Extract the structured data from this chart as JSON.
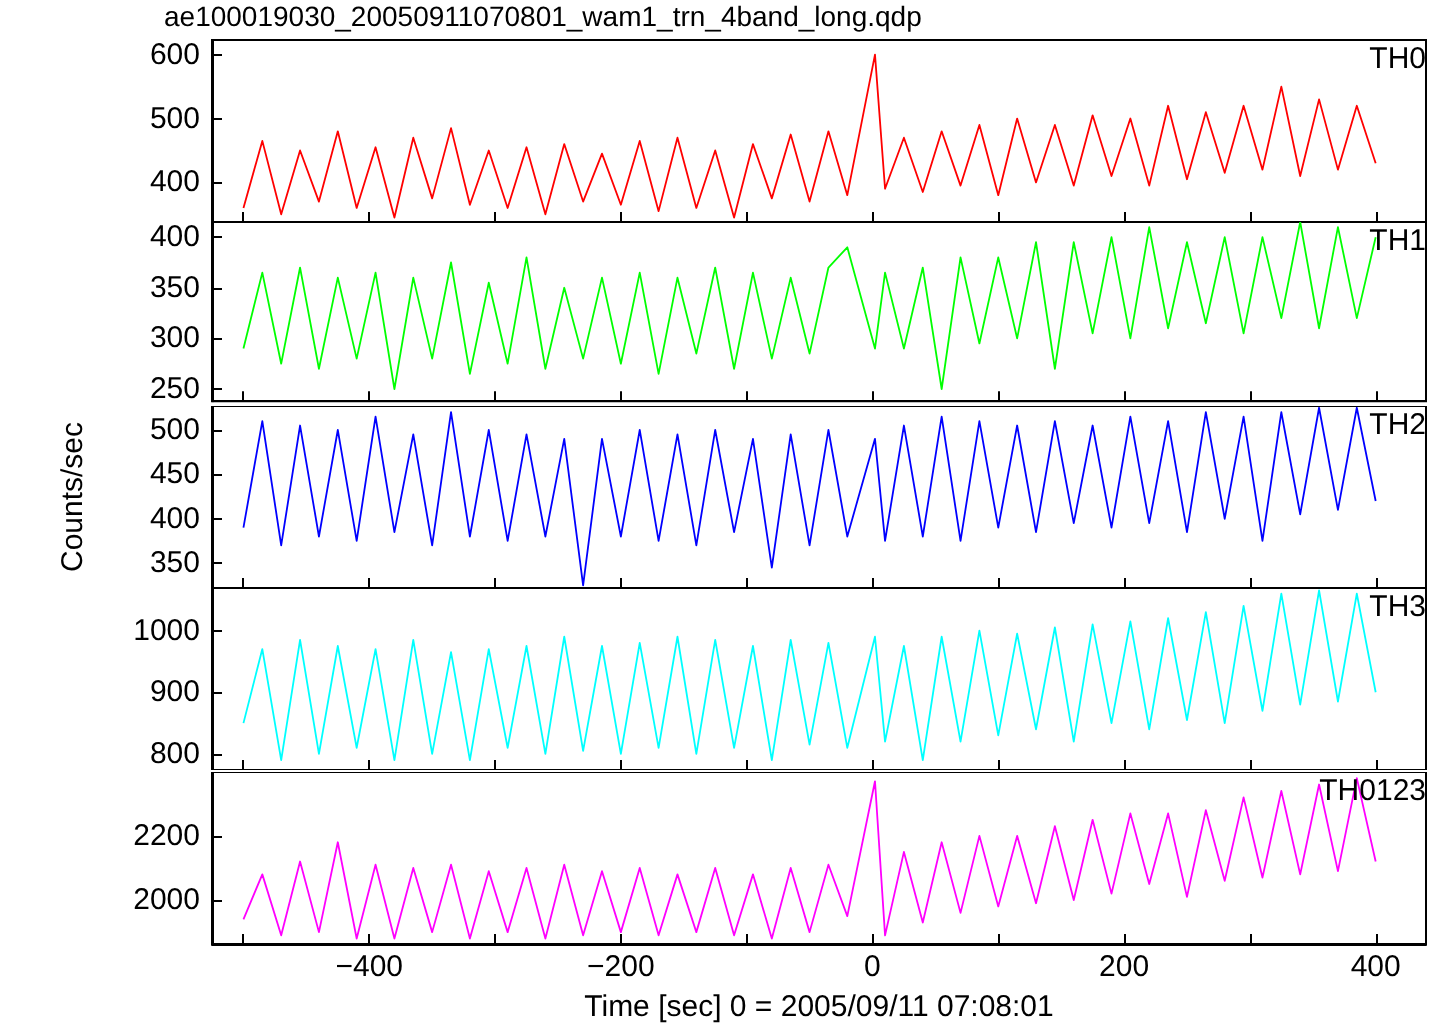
{
  "chart_data": [
    {
      "type": "line",
      "title": "ae100019030_20050911070801_wam1_trn_4band_long.qdp",
      "xlim": [
        -525,
        440
      ],
      "xticks": [
        {
          "value": -500,
          "label": null
        },
        -400,
        {
          "value": -300,
          "label": null
        },
        -200,
        {
          "value": -100,
          "label": null
        },
        0,
        {
          "value": 100,
          "label": null
        },
        200,
        {
          "value": 300,
          "label": null
        },
        400
      ],
      "ylim": [
        338,
        623
      ],
      "yticks": [
        400,
        500,
        600
      ],
      "tick_labels": "y",
      "legend": "top right",
      "x": [
        -500,
        -485,
        -470,
        -455,
        -440,
        -425,
        -410,
        -395,
        -380,
        -365,
        -350,
        -335,
        -320,
        -305,
        -290,
        -275,
        -260,
        -245,
        -230,
        -215,
        -200,
        -185,
        -170,
        -155,
        -140,
        -125,
        -110,
        -95,
        -80,
        -65,
        -50,
        -35,
        -20,
        2,
        10,
        25,
        40,
        55,
        70,
        85,
        100,
        115,
        130,
        145,
        160,
        175,
        190,
        205,
        220,
        235,
        250,
        265,
        280,
        295,
        310,
        325,
        340,
        355,
        370,
        385,
        400
      ],
      "series": [
        {
          "name": "TH0",
          "color": "#ff0000",
          "values": [
            360,
            465,
            350,
            450,
            370,
            480,
            360,
            455,
            345,
            470,
            375,
            485,
            365,
            450,
            360,
            455,
            350,
            460,
            370,
            445,
            365,
            465,
            355,
            470,
            360,
            450,
            345,
            460,
            375,
            475,
            370,
            480,
            380,
            600,
            390,
            470,
            385,
            480,
            395,
            490,
            380,
            500,
            400,
            490,
            395,
            505,
            410,
            500,
            395,
            520,
            405,
            510,
            415,
            520,
            420,
            550,
            410,
            530,
            420,
            520,
            430
          ]
        }
      ]
    },
    {
      "type": "line",
      "xlim": [
        -525,
        440
      ],
      "xticks": [
        {
          "value": -500,
          "label": null
        },
        -400,
        {
          "value": -300,
          "label": null
        },
        -200,
        {
          "value": -100,
          "label": null
        },
        0,
        {
          "value": 100,
          "label": null
        },
        200,
        {
          "value": 300,
          "label": null
        },
        400
      ],
      "ylim": [
        238,
        415
      ],
      "yticks": [
        250,
        300,
        350,
        400
      ],
      "tick_labels": "y",
      "legend": "top right",
      "x": [
        -500,
        -485,
        -470,
        -455,
        -440,
        -425,
        -410,
        -395,
        -380,
        -365,
        -350,
        -335,
        -320,
        -305,
        -290,
        -275,
        -260,
        -245,
        -230,
        -215,
        -200,
        -185,
        -170,
        -155,
        -140,
        -125,
        -110,
        -95,
        -80,
        -65,
        -50,
        -35,
        -20,
        2,
        10,
        25,
        40,
        55,
        70,
        85,
        100,
        115,
        130,
        145,
        160,
        175,
        190,
        205,
        220,
        235,
        250,
        265,
        280,
        295,
        310,
        325,
        340,
        355,
        370,
        385,
        400
      ],
      "series": [
        {
          "name": "TH1",
          "color": "#00ff00",
          "values": [
            290,
            365,
            275,
            370,
            270,
            360,
            280,
            365,
            250,
            360,
            280,
            375,
            265,
            355,
            275,
            380,
            270,
            350,
            280,
            360,
            275,
            365,
            265,
            360,
            285,
            370,
            270,
            365,
            280,
            360,
            285,
            370,
            390,
            290,
            365,
            290,
            370,
            250,
            380,
            295,
            380,
            300,
            395,
            270,
            395,
            305,
            400,
            300,
            410,
            310,
            395,
            315,
            400,
            305,
            400,
            320,
            415,
            310,
            410,
            320,
            400
          ]
        }
      ]
    },
    {
      "type": "line",
      "ylabel": "Counts/sec",
      "xlim": [
        -525,
        440
      ],
      "xticks": [
        {
          "value": -500,
          "label": null
        },
        -400,
        {
          "value": -300,
          "label": null
        },
        -200,
        {
          "value": -100,
          "label": null
        },
        0,
        {
          "value": 100,
          "label": null
        },
        200,
        {
          "value": 300,
          "label": null
        },
        400
      ],
      "ylim": [
        322,
        527
      ],
      "yticks": [
        350,
        400,
        450,
        500
      ],
      "tick_labels": "y",
      "legend": "top right",
      "x": [
        -500,
        -485,
        -470,
        -455,
        -440,
        -425,
        -410,
        -395,
        -380,
        -365,
        -350,
        -335,
        -320,
        -305,
        -290,
        -275,
        -260,
        -245,
        -230,
        -215,
        -200,
        -185,
        -170,
        -155,
        -140,
        -125,
        -110,
        -95,
        -80,
        -65,
        -50,
        -35,
        -20,
        2,
        10,
        25,
        40,
        55,
        70,
        85,
        100,
        115,
        130,
        145,
        160,
        175,
        190,
        205,
        220,
        235,
        250,
        265,
        280,
        295,
        310,
        325,
        340,
        355,
        370,
        385,
        400
      ],
      "series": [
        {
          "name": "TH2",
          "color": "#0000ff",
          "values": [
            390,
            510,
            370,
            505,
            380,
            500,
            375,
            515,
            385,
            495,
            370,
            520,
            380,
            500,
            375,
            495,
            380,
            490,
            325,
            490,
            380,
            500,
            375,
            495,
            370,
            500,
            385,
            490,
            345,
            495,
            370,
            500,
            380,
            490,
            375,
            505,
            380,
            515,
            375,
            510,
            390,
            505,
            385,
            510,
            395,
            505,
            390,
            515,
            395,
            510,
            385,
            520,
            400,
            515,
            375,
            520,
            405,
            525,
            410,
            525,
            420
          ]
        }
      ]
    },
    {
      "type": "line",
      "xlim": [
        -525,
        440
      ],
      "xticks": [
        {
          "value": -500,
          "label": null
        },
        -400,
        {
          "value": -300,
          "label": null
        },
        -200,
        {
          "value": -100,
          "label": null
        },
        0,
        {
          "value": 100,
          "label": null
        },
        200,
        {
          "value": 300,
          "label": null
        },
        400
      ],
      "ylim": [
        774,
        1069
      ],
      "yticks": [
        800,
        900,
        1000
      ],
      "tick_labels": "y",
      "legend": "top right",
      "x": [
        -500,
        -485,
        -470,
        -455,
        -440,
        -425,
        -410,
        -395,
        -380,
        -365,
        -350,
        -335,
        -320,
        -305,
        -290,
        -275,
        -260,
        -245,
        -230,
        -215,
        -200,
        -185,
        -170,
        -155,
        -140,
        -125,
        -110,
        -95,
        -80,
        -65,
        -50,
        -35,
        -20,
        2,
        10,
        25,
        40,
        55,
        70,
        85,
        100,
        115,
        130,
        145,
        160,
        175,
        190,
        205,
        220,
        235,
        250,
        265,
        280,
        295,
        310,
        325,
        340,
        355,
        370,
        385,
        400
      ],
      "series": [
        {
          "name": "TH3",
          "color": "#00ffff",
          "values": [
            850,
            970,
            790,
            985,
            800,
            975,
            810,
            970,
            790,
            985,
            800,
            965,
            790,
            970,
            810,
            975,
            800,
            990,
            805,
            975,
            800,
            980,
            810,
            990,
            800,
            985,
            810,
            975,
            790,
            985,
            815,
            980,
            810,
            990,
            820,
            975,
            790,
            990,
            820,
            1000,
            830,
            995,
            840,
            1005,
            820,
            1010,
            850,
            1015,
            840,
            1020,
            855,
            1030,
            850,
            1040,
            870,
            1060,
            880,
            1065,
            885,
            1060,
            900
          ]
        }
      ]
    },
    {
      "type": "line",
      "xlabel": "Time [sec] 0 = 2005/09/11 07:08:01",
      "xlim": [
        -525,
        440
      ],
      "xticks": [
        {
          "value": -500,
          "label": null
        },
        -400,
        {
          "value": -300,
          "label": null
        },
        -200,
        {
          "value": -100,
          "label": null
        },
        0,
        {
          "value": 100,
          "label": null
        },
        200,
        {
          "value": 300,
          "label": null
        },
        400
      ],
      "ylim": [
        1863,
        2399
      ],
      "yticks": [
        2000,
        2200
      ],
      "legend": "top right",
      "x": [
        -500,
        -485,
        -470,
        -455,
        -440,
        -425,
        -410,
        -395,
        -380,
        -365,
        -350,
        -335,
        -320,
        -305,
        -290,
        -275,
        -260,
        -245,
        -230,
        -215,
        -200,
        -185,
        -170,
        -155,
        -140,
        -125,
        -110,
        -95,
        -80,
        -65,
        -50,
        -35,
        -20,
        2,
        10,
        25,
        40,
        55,
        70,
        85,
        100,
        115,
        130,
        145,
        160,
        175,
        190,
        205,
        220,
        235,
        250,
        265,
        280,
        295,
        310,
        325,
        340,
        355,
        370,
        385,
        400
      ],
      "series": [
        {
          "name": "TH0123",
          "color": "#ff00ff",
          "values": [
            1940,
            2080,
            1890,
            2120,
            1900,
            2180,
            1880,
            2110,
            1880,
            2100,
            1900,
            2110,
            1880,
            2090,
            1900,
            2100,
            1880,
            2110,
            1890,
            2090,
            1900,
            2100,
            1890,
            2080,
            1900,
            2100,
            1890,
            2080,
            1880,
            2100,
            1900,
            2110,
            1950,
            2370,
            1890,
            2150,
            1930,
            2180,
            1960,
            2200,
            1980,
            2200,
            1990,
            2230,
            2000,
            2250,
            2020,
            2270,
            2050,
            2270,
            2010,
            2280,
            2060,
            2320,
            2070,
            2340,
            2080,
            2360,
            2090,
            2380,
            2120
          ]
        }
      ]
    }
  ]
}
